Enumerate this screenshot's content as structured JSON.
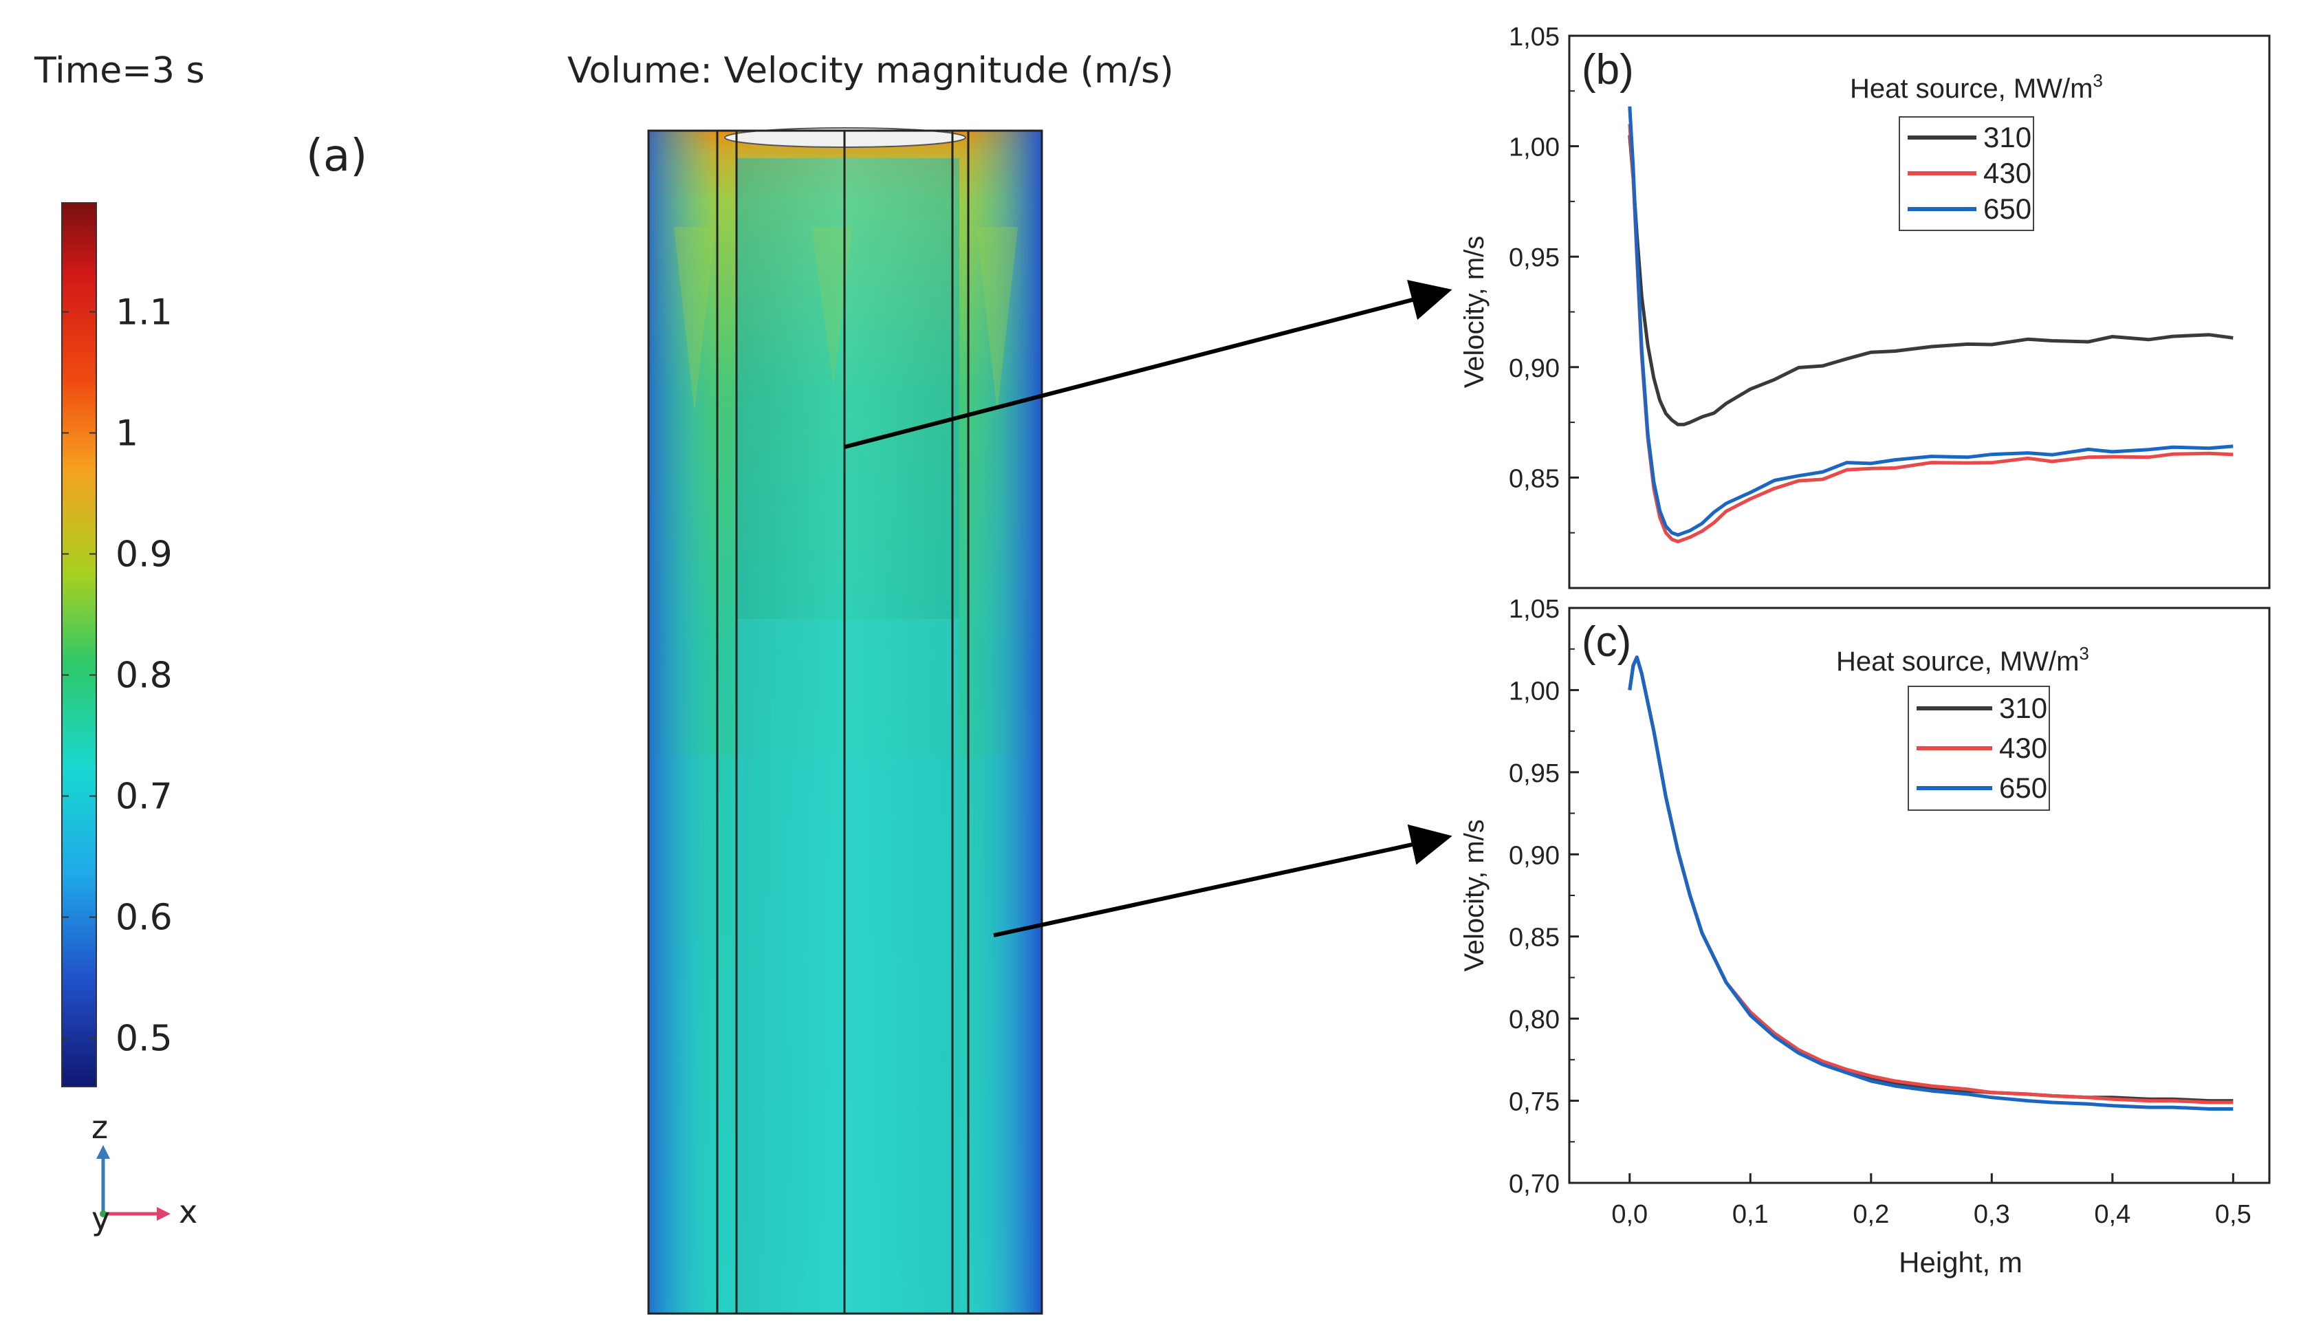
{
  "panel_a": {
    "time_label": "Time=3 s",
    "title": "Volume: Velocity magnitude (m/s)",
    "panel_label": "(a)",
    "colorbar_ticks": [
      "1.1",
      "1",
      "0.9",
      "0.8",
      "0.7",
      "0.6",
      "0.5"
    ],
    "colorbar_tick_values": [
      1.1,
      1.0,
      0.9,
      0.8,
      0.7,
      0.6,
      0.5
    ],
    "colorbar_range": [
      0.46,
      1.19
    ],
    "axis_z": "z",
    "axis_y": "y",
    "axis_x": "x",
    "colors": {
      "axis_z": "#3a7ab8",
      "axis_x": "#e0406a",
      "axis_y": "#3aa04a",
      "arrow": "#000000"
    }
  },
  "chart_data": [
    {
      "id": "b",
      "type": "line",
      "panel_label": "(b)",
      "title": "",
      "xlabel": "",
      "ylabel": "Velocity, m/s",
      "xlim": [
        -0.05,
        0.53
      ],
      "ylim": [
        0.8,
        1.05
      ],
      "y_ticks": [
        0.8,
        0.85,
        0.9,
        0.95,
        1.0,
        1.05
      ],
      "y_tick_labels": [
        "",
        "0,85",
        "0,90",
        "0,95",
        "1,00",
        "1,05"
      ],
      "legend_title": "Heat source, MW/m",
      "legend_title_sup": "3",
      "legend_position": "top-right",
      "series": [
        {
          "name": "310",
          "color": "#3a3a3a",
          "x": [
            0.0,
            0.003,
            0.006,
            0.01,
            0.015,
            0.02,
            0.025,
            0.03,
            0.035,
            0.04,
            0.045,
            0.05,
            0.06,
            0.07,
            0.08,
            0.1,
            0.12,
            0.14,
            0.16,
            0.18,
            0.2,
            0.22,
            0.25,
            0.28,
            0.3,
            0.33,
            0.35,
            0.38,
            0.4,
            0.43,
            0.45,
            0.48,
            0.5
          ],
          "y": [
            1.005,
            0.985,
            0.96,
            0.932,
            0.91,
            0.895,
            0.885,
            0.879,
            0.876,
            0.874,
            0.874,
            0.875,
            0.877,
            0.88,
            0.883,
            0.89,
            0.895,
            0.899,
            0.901,
            0.904,
            0.906,
            0.908,
            0.909,
            0.91,
            0.911,
            0.912,
            0.912,
            0.912,
            0.913,
            0.913,
            0.914,
            0.914,
            0.914
          ]
        },
        {
          "name": "430",
          "color": "#e84a4a",
          "x": [
            0.0,
            0.003,
            0.006,
            0.01,
            0.015,
            0.02,
            0.025,
            0.03,
            0.035,
            0.04,
            0.045,
            0.05,
            0.06,
            0.07,
            0.08,
            0.1,
            0.12,
            0.14,
            0.16,
            0.18,
            0.2,
            0.22,
            0.25,
            0.28,
            0.3,
            0.33,
            0.35,
            0.38,
            0.4,
            0.43,
            0.45,
            0.48,
            0.5
          ],
          "y": [
            1.01,
            0.985,
            0.95,
            0.905,
            0.868,
            0.845,
            0.832,
            0.825,
            0.822,
            0.821,
            0.822,
            0.823,
            0.826,
            0.83,
            0.834,
            0.841,
            0.845,
            0.848,
            0.85,
            0.853,
            0.854,
            0.855,
            0.856,
            0.857,
            0.857,
            0.858,
            0.858,
            0.859,
            0.859,
            0.86,
            0.86,
            0.861,
            0.861
          ]
        },
        {
          "name": "650",
          "color": "#1a66c2",
          "x": [
            0.0,
            0.003,
            0.006,
            0.01,
            0.015,
            0.02,
            0.025,
            0.03,
            0.035,
            0.04,
            0.045,
            0.05,
            0.06,
            0.07,
            0.08,
            0.1,
            0.12,
            0.14,
            0.16,
            0.18,
            0.2,
            0.22,
            0.25,
            0.28,
            0.3,
            0.33,
            0.35,
            0.38,
            0.4,
            0.43,
            0.45,
            0.48,
            0.5
          ],
          "y": [
            1.018,
            0.99,
            0.952,
            0.908,
            0.87,
            0.848,
            0.835,
            0.828,
            0.825,
            0.824,
            0.825,
            0.826,
            0.83,
            0.834,
            0.838,
            0.844,
            0.848,
            0.851,
            0.853,
            0.856,
            0.857,
            0.858,
            0.859,
            0.86,
            0.86,
            0.861,
            0.861,
            0.862,
            0.862,
            0.863,
            0.863,
            0.864,
            0.864
          ]
        }
      ]
    },
    {
      "id": "c",
      "type": "line",
      "panel_label": "(c)",
      "title": "",
      "xlabel": "Height, m",
      "ylabel": "Velocity, m/s",
      "xlim": [
        -0.05,
        0.53
      ],
      "ylim": [
        0.7,
        1.05
      ],
      "x_ticks": [
        0.0,
        0.1,
        0.2,
        0.3,
        0.4,
        0.5
      ],
      "x_tick_labels": [
        "0,0",
        "0,1",
        "0,2",
        "0,3",
        "0,4",
        "0,5"
      ],
      "y_ticks": [
        0.7,
        0.75,
        0.8,
        0.85,
        0.9,
        0.95,
        1.0,
        1.05
      ],
      "y_tick_labels": [
        "0,70",
        "0,75",
        "0,80",
        "0,85",
        "0,90",
        "0,95",
        "1,00",
        "1,05"
      ],
      "legend_title": "Heat source, MW/m",
      "legend_title_sup": "3",
      "legend_position": "top-right",
      "series": [
        {
          "name": "310",
          "color": "#3a3a3a",
          "x": [
            0.0,
            0.003,
            0.006,
            0.01,
            0.02,
            0.03,
            0.04,
            0.05,
            0.06,
            0.08,
            0.1,
            0.12,
            0.14,
            0.16,
            0.18,
            0.2,
            0.22,
            0.25,
            0.28,
            0.3,
            0.33,
            0.35,
            0.38,
            0.4,
            0.43,
            0.45,
            0.48,
            0.5
          ],
          "y": [
            1.0,
            1.015,
            1.02,
            1.01,
            0.975,
            0.935,
            0.902,
            0.875,
            0.852,
            0.822,
            0.803,
            0.79,
            0.78,
            0.773,
            0.768,
            0.764,
            0.761,
            0.758,
            0.756,
            0.755,
            0.754,
            0.753,
            0.752,
            0.752,
            0.751,
            0.751,
            0.75,
            0.75
          ]
        },
        {
          "name": "430",
          "color": "#e84a4a",
          "x": [
            0.0,
            0.003,
            0.006,
            0.01,
            0.02,
            0.03,
            0.04,
            0.05,
            0.06,
            0.08,
            0.1,
            0.12,
            0.14,
            0.16,
            0.18,
            0.2,
            0.22,
            0.25,
            0.28,
            0.3,
            0.33,
            0.35,
            0.38,
            0.4,
            0.43,
            0.45,
            0.48,
            0.5
          ],
          "y": [
            1.0,
            1.015,
            1.02,
            1.01,
            0.975,
            0.935,
            0.902,
            0.875,
            0.852,
            0.822,
            0.804,
            0.791,
            0.781,
            0.774,
            0.769,
            0.765,
            0.762,
            0.759,
            0.757,
            0.755,
            0.754,
            0.753,
            0.752,
            0.751,
            0.75,
            0.75,
            0.749,
            0.749
          ]
        },
        {
          "name": "650",
          "color": "#1a66c2",
          "x": [
            0.0,
            0.003,
            0.006,
            0.01,
            0.02,
            0.03,
            0.04,
            0.05,
            0.06,
            0.08,
            0.1,
            0.12,
            0.14,
            0.16,
            0.18,
            0.2,
            0.22,
            0.25,
            0.28,
            0.3,
            0.33,
            0.35,
            0.38,
            0.4,
            0.43,
            0.45,
            0.48,
            0.5
          ],
          "y": [
            1.0,
            1.015,
            1.02,
            1.01,
            0.975,
            0.935,
            0.902,
            0.875,
            0.852,
            0.822,
            0.802,
            0.789,
            0.779,
            0.772,
            0.767,
            0.762,
            0.759,
            0.756,
            0.754,
            0.752,
            0.75,
            0.749,
            0.748,
            0.747,
            0.746,
            0.746,
            0.745,
            0.745
          ]
        }
      ]
    }
  ]
}
